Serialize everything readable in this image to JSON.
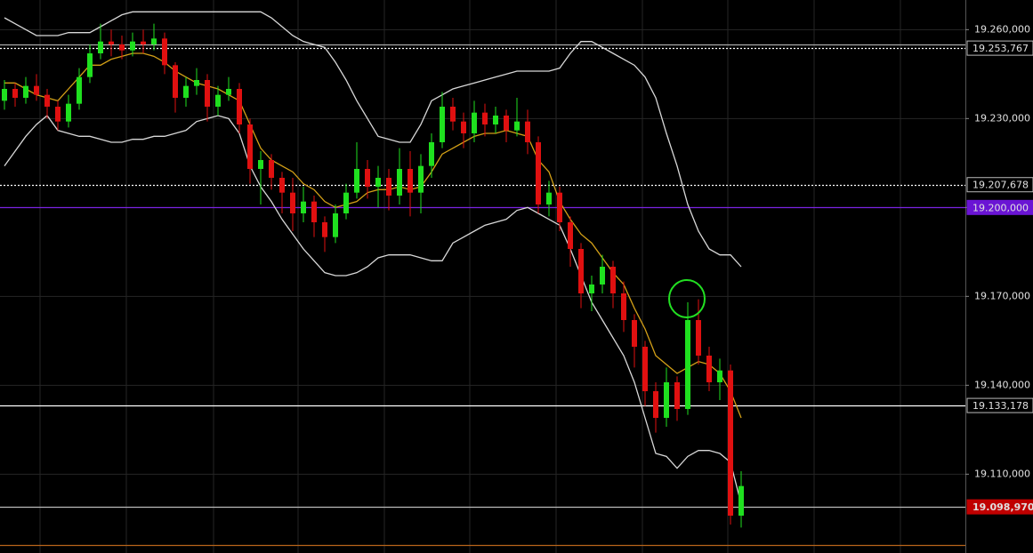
{
  "chart_data": {
    "type": "candlestick",
    "ylim": [
      19083.4,
      19270
    ],
    "yticks": [
      {
        "value": 19260,
        "label": "19.260,000"
      },
      {
        "value": 19230,
        "label": "19.230,000"
      },
      {
        "value": 19200,
        "label": "19.200,000"
      },
      {
        "value": 19170,
        "label": "19.170,000"
      },
      {
        "value": 19140,
        "label": "19.140,000"
      },
      {
        "value": 19110,
        "label": "19.110,000"
      }
    ],
    "grid": true,
    "up_color": "#1fe01f",
    "down_color": "#e01010",
    "open": [
      19236,
      19240,
      19237,
      19241,
      19238,
      19234,
      19229,
      19235,
      19244,
      19252,
      19256,
      19255,
      19253,
      19256,
      19255,
      19257,
      19248,
      19237,
      19241,
      19243,
      19234,
      19238,
      19240,
      19228,
      19213,
      19216,
      19210,
      19205,
      19198,
      19202,
      19195,
      19190,
      19198,
      19205,
      19213,
      19207,
      19210,
      19204,
      19213,
      19205,
      19214,
      19222,
      19234,
      19229,
      19225,
      19232,
      19228,
      19231,
      19226,
      19229,
      19222,
      19201,
      19205,
      19195,
      19186,
      19171,
      19174,
      19180,
      19171,
      19162,
      19153,
      19138,
      19129,
      19141,
      19132,
      19162,
      19150,
      19141,
      19145,
      19096
    ],
    "high": [
      19243,
      19242,
      19244,
      19245,
      19240,
      19236,
      19238,
      19247,
      19255,
      19262,
      19260,
      19258,
      19259,
      19260,
      19262,
      19259,
      19249,
      19244,
      19247,
      19245,
      19241,
      19244,
      19242,
      19230,
      19219,
      19218,
      19212,
      19210,
      19207,
      19204,
      19197,
      19201,
      19208,
      19222,
      19216,
      19214,
      19213,
      19220,
      19219,
      19218,
      19225,
      19239,
      19237,
      19232,
      19236,
      19235,
      19234,
      19233,
      19237,
      19233,
      19224,
      19209,
      19207,
      19197,
      19188,
      19177,
      19184,
      19182,
      19175,
      19164,
      19155,
      19141,
      19146,
      19143,
      19168,
      19169,
      19153,
      19149,
      19147,
      19111
    ],
    "low": [
      19233,
      19234,
      19235,
      19236,
      19230,
      19226,
      19227,
      19233,
      19242,
      19250,
      19251,
      19250,
      19251,
      19252,
      19253,
      19245,
      19232,
      19234,
      19238,
      19229,
      19231,
      19236,
      19225,
      19208,
      19201,
      19206,
      19198,
      19192,
      19195,
      19190,
      19185,
      19188,
      19196,
      19203,
      19203,
      19200,
      19199,
      19201,
      19197,
      19198,
      19210,
      19220,
      19226,
      19220,
      19222,
      19224,
      19225,
      19222,
      19224,
      19218,
      19198,
      19197,
      19192,
      19180,
      19166,
      19165,
      19171,
      19166,
      19158,
      19146,
      19133,
      19124,
      19126,
      19128,
      19130,
      19147,
      19138,
      19135,
      19093,
      19092
    ],
    "close": [
      19240,
      19237,
      19241,
      19238,
      19234,
      19229,
      19235,
      19244,
      19252,
      19256,
      19255,
      19253,
      19256,
      19255,
      19257,
      19248,
      19237,
      19241,
      19243,
      19234,
      19238,
      19240,
      19228,
      19213,
      19216,
      19210,
      19205,
      19198,
      19202,
      19195,
      19190,
      19198,
      19205,
      19213,
      19207,
      19210,
      19204,
      19213,
      19205,
      19214,
      19222,
      19234,
      19229,
      19225,
      19232,
      19228,
      19231,
      19226,
      19229,
      19222,
      19201,
      19205,
      19195,
      19186,
      19171,
      19174,
      19180,
      19171,
      19162,
      19153,
      19138,
      19129,
      19141,
      19132,
      19162,
      19150,
      19141,
      19145,
      19096,
      19106
    ],
    "series": [
      {
        "color": "#d8d8d8",
        "values": [
          19264,
          19262,
          19260,
          19258,
          19258,
          19258,
          19259,
          19259,
          19259,
          19261,
          19263,
          19265,
          19266,
          19266,
          19266,
          19266,
          19266,
          19266,
          19266,
          19266,
          19266,
          19266,
          19266,
          19266,
          19266,
          19264,
          19261,
          19258,
          19256,
          19255,
          19254,
          19249,
          19243,
          19236,
          19230,
          19224,
          19223,
          19222,
          19222,
          19228,
          19236,
          19238,
          19240,
          19241,
          19242,
          19243,
          19244,
          19245,
          19246,
          19246,
          19246,
          19246,
          19247,
          19252,
          19256,
          19256,
          19254,
          19252,
          19250,
          19248,
          19244,
          19237,
          19225,
          19214,
          19201,
          19192,
          19186,
          19184,
          19184,
          19180
        ]
      },
      {
        "color": "#d4a017",
        "values": [
          19242,
          19242,
          19240,
          19238,
          19237,
          19236,
          19240,
          19244,
          19248,
          19248,
          19250,
          19251,
          19252,
          19252,
          19251,
          19249,
          19246,
          19244,
          19242,
          19241,
          19240,
          19238,
          19236,
          19228,
          19220,
          19216,
          19214,
          19212,
          19208,
          19206,
          19202,
          19200,
          19201,
          19202,
          19205,
          19206,
          19206,
          19207,
          19206,
          19207,
          19212,
          19218,
          19220,
          19222,
          19224,
          19225,
          19225,
          19226,
          19225,
          19224,
          19216,
          19212,
          19202,
          19196,
          19191,
          19188,
          19183,
          19178,
          19174,
          19166,
          19159,
          19150,
          19147,
          19144,
          19146,
          19148,
          19147,
          19144,
          19138,
          19129
        ]
      },
      {
        "color": "#d8d8d8",
        "values": [
          19214,
          19219,
          19224,
          19228,
          19231,
          19226,
          19225,
          19224,
          19224,
          19223,
          19222,
          19222,
          19223,
          19223,
          19224,
          19224,
          19225,
          19226,
          19229,
          19230,
          19231,
          19230,
          19225,
          19214,
          19207,
          19202,
          19196,
          19191,
          19186,
          19182,
          19178,
          19177,
          19177,
          19178,
          19180,
          19183,
          19184,
          19184,
          19184,
          19183,
          19182,
          19182,
          19188,
          19190,
          19192,
          19194,
          19195,
          19196,
          19199,
          19200,
          19198,
          19196,
          19194,
          19186,
          19177,
          19168,
          19162,
          19156,
          19150,
          19141,
          19129,
          19117,
          19116,
          19112,
          19116,
          19118,
          19118,
          19117,
          19114,
          19100
        ]
      }
    ],
    "levels": [
      {
        "value": 19255,
        "color": "#aaaaaa",
        "style": "solid"
      },
      {
        "value": 19253.767,
        "label": "19.253,767",
        "color": "#ffffff",
        "style": "dotted",
        "label_color": "#000000"
      },
      {
        "value": 19207.678,
        "label": "19.207,678",
        "color": "#ffffff",
        "style": "dotted",
        "label_color": "#000000"
      },
      {
        "value": 19200,
        "label": "19.200,000",
        "color": "#7a22e0",
        "style": "solid",
        "label_color": "#6a14d4"
      },
      {
        "value": 19133.178,
        "label": "19.133,178",
        "color": "#ffffff",
        "style": "solid",
        "label_color": "#000000"
      },
      {
        "value": 19098.97,
        "label": "19.098,970",
        "color": "#bbbbbb",
        "style": "solid",
        "label_color": "#c00000"
      },
      {
        "value": 19086,
        "color": "#b8651a",
        "style": "solid"
      }
    ]
  }
}
